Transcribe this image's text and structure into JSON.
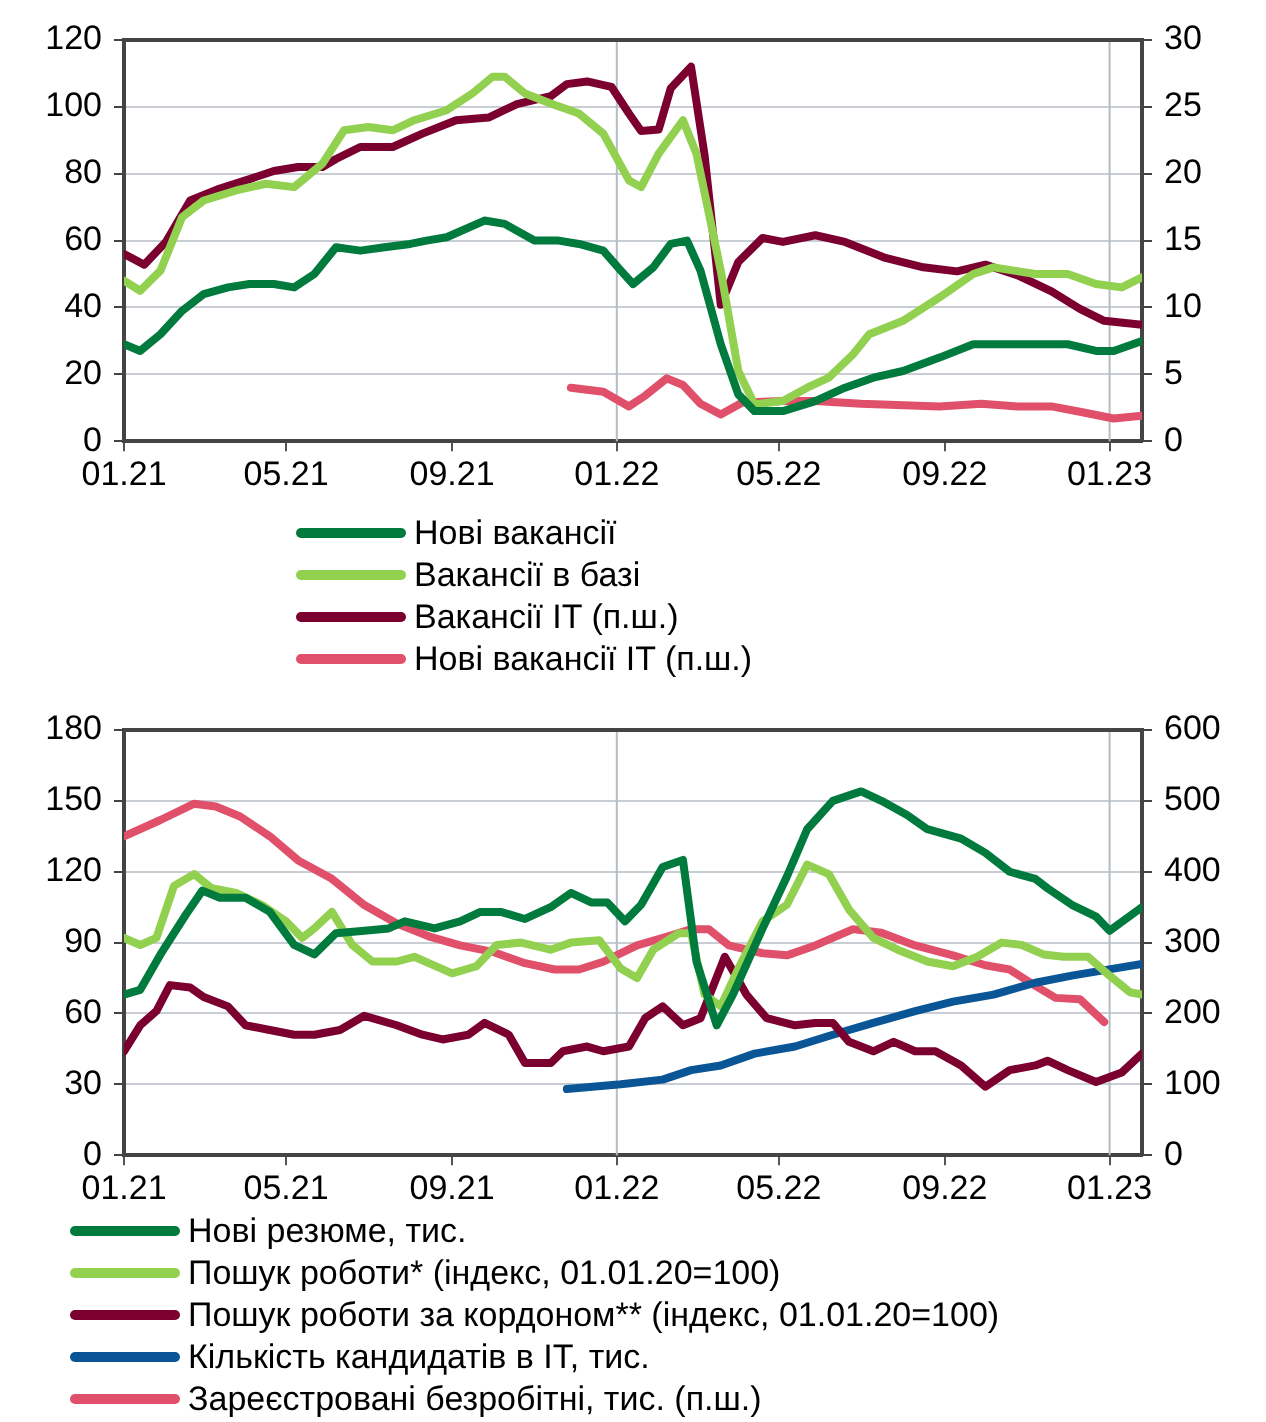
{
  "chart_data": [
    {
      "type": "line",
      "legend": "bottom",
      "grid": "y",
      "marker": "none",
      "line_style": "solid",
      "xlim": [
        "2021-01-01",
        "2023-01-25"
      ],
      "xticks": [
        {
          "value": "2021-01",
          "label": "01.21"
        },
        {
          "value": "2021-05",
          "label": "05.21"
        },
        {
          "value": "2021-09",
          "label": "09.21"
        },
        {
          "value": "2022-01",
          "label": "01.22"
        },
        {
          "value": "2022-05",
          "label": "05.22"
        },
        {
          "value": "2022-09",
          "label": "09.22"
        },
        {
          "value": "2023-01",
          "label": "01.23"
        }
      ],
      "ylim": [
        0,
        120
      ],
      "yticks": [
        0,
        20,
        40,
        60,
        80,
        100,
        120
      ],
      "y2lim": [
        0,
        30
      ],
      "y2ticks": [
        0,
        5,
        10,
        15,
        20,
        25,
        30
      ],
      "ref_lines": [
        {
          "axis": "x",
          "value": "2022-01",
          "color": "#b4bcc4"
        },
        {
          "axis": "x",
          "value": "2023-01",
          "color": "#b4bcc4"
        }
      ],
      "series": [
        {
          "name": "Нові вакансії",
          "color": "#007a3d",
          "x": [
            "2021-01-01",
            "2021-01-13",
            "2021-01-28",
            "2021-02-13",
            "2021-03-01",
            "2021-03-19",
            "2021-04-04",
            "2021-04-22",
            "2021-05-07",
            "2021-05-22",
            "2021-06-07",
            "2021-06-25",
            "2021-07-13",
            "2021-08-01",
            "2021-08-13",
            "2021-08-28",
            "2021-09-25",
            "2021-10-10",
            "2021-11-01",
            "2021-11-19",
            "2021-12-04",
            "2021-12-22",
            "2022-01-04",
            "2022-01-13",
            "2022-01-28",
            "2022-02-10",
            "2022-02-22",
            "2022-03-04",
            "2022-03-19",
            "2022-04-01",
            "2022-04-13",
            "2022-05-04",
            "2022-05-28",
            "2022-06-19",
            "2022-07-10",
            "2022-08-01",
            "2022-08-28",
            "2022-09-22",
            "2022-10-13",
            "2022-11-07",
            "2022-12-01",
            "2022-12-22",
            "2023-01-04",
            "2023-01-25"
          ],
          "values": [
            29,
            27,
            32,
            39,
            44,
            46,
            47,
            47,
            46,
            50,
            58,
            57,
            58,
            59,
            60,
            61,
            66,
            65,
            60,
            60,
            59,
            57,
            51,
            47,
            52,
            59,
            60,
            51,
            29,
            14,
            9,
            9,
            12,
            16,
            19,
            21,
            25,
            29,
            29,
            29,
            29,
            27,
            27,
            30
          ]
        },
        {
          "name": "Вакансії в базі",
          "color": "#92d050",
          "x": [
            "2021-01-01",
            "2021-01-13",
            "2021-01-28",
            "2021-02-13",
            "2021-03-01",
            "2021-03-25",
            "2021-04-16",
            "2021-05-07",
            "2021-05-28",
            "2021-06-13",
            "2021-07-01",
            "2021-07-19",
            "2021-08-04",
            "2021-08-28",
            "2021-09-16",
            "2021-10-01",
            "2021-10-10",
            "2021-10-25",
            "2021-11-13",
            "2021-12-04",
            "2021-12-22",
            "2022-01-10",
            "2022-01-19",
            "2022-02-01",
            "2022-02-19",
            "2022-03-01",
            "2022-03-19",
            "2022-04-01",
            "2022-04-13",
            "2022-05-04",
            "2022-05-22",
            "2022-06-07",
            "2022-06-25",
            "2022-07-07",
            "2022-08-01",
            "2022-08-28",
            "2022-09-22",
            "2022-10-07",
            "2022-11-07",
            "2022-12-01",
            "2022-12-22",
            "2023-01-10",
            "2023-01-25"
          ],
          "values": [
            48,
            45,
            51,
            67,
            72,
            75,
            77,
            76,
            83,
            93,
            94,
            93,
            96,
            99,
            104,
            109,
            109,
            104,
            101,
            98,
            92,
            78,
            76,
            86,
            96,
            86,
            51,
            21,
            11,
            12,
            16,
            19,
            26,
            32,
            36,
            43,
            50,
            52,
            50,
            50,
            47,
            46,
            49
          ]
        },
        {
          "name": "Вакансії IT (п.ш.)",
          "color": "#7b0030",
          "axis": "y2",
          "x": [
            "2021-01-01",
            "2021-01-16",
            "2021-02-01",
            "2021-02-19",
            "2021-03-13",
            "2021-04-04",
            "2021-04-22",
            "2021-05-10",
            "2021-05-28",
            "2021-06-07",
            "2021-06-25",
            "2021-07-19",
            "2021-08-10",
            "2021-09-04",
            "2021-09-28",
            "2021-10-19",
            "2021-11-13",
            "2021-11-25",
            "2021-12-10",
            "2021-12-28",
            "2022-01-10",
            "2022-01-19",
            "2022-02-01",
            "2022-02-10",
            "2022-02-25",
            "2022-03-07",
            "2022-03-19",
            "2022-04-01",
            "2022-04-19",
            "2022-05-04",
            "2022-05-28",
            "2022-06-19",
            "2022-07-19",
            "2022-08-16",
            "2022-09-10",
            "2022-10-01",
            "2022-10-25",
            "2022-11-19",
            "2022-12-10",
            "2022-12-28",
            "2023-01-25"
          ],
          "values": [
            14,
            13.2,
            14.9,
            18,
            18.9,
            19.6,
            20.2,
            20.5,
            20.5,
            21.1,
            22,
            22,
            23,
            24,
            24.2,
            25.2,
            25.8,
            26.7,
            26.9,
            26.5,
            24.5,
            23.2,
            23.3,
            26.4,
            28,
            21.4,
            10.2,
            13.4,
            15.2,
            14.9,
            15.4,
            14.9,
            13.7,
            13,
            12.7,
            13.2,
            12.4,
            11.2,
            9.9,
            9,
            8.7
          ]
        },
        {
          "name": "Нові вакансії IT (п.ш.)",
          "color": "#e0506a",
          "axis": "y2",
          "x": [
            "2021-11-28",
            "2021-12-22",
            "2022-01-10",
            "2022-01-22",
            "2022-02-07",
            "2022-02-19",
            "2022-03-04",
            "2022-03-19",
            "2022-04-04",
            "2022-05-04",
            "2022-05-28",
            "2022-07-01",
            "2022-08-28",
            "2022-09-28",
            "2022-10-25",
            "2022-11-19",
            "2022-12-10",
            "2023-01-04",
            "2023-01-25"
          ],
          "values": [
            4,
            3.7,
            2.6,
            3.4,
            4.7,
            4.2,
            2.8,
            2,
            2.9,
            3,
            3,
            2.8,
            2.6,
            2.8,
            2.6,
            2.6,
            2.2,
            1.7,
            1.9
          ]
        }
      ]
    },
    {
      "type": "line",
      "legend": "bottom",
      "grid": "y",
      "marker": "none",
      "line_style": "solid",
      "xlim": [
        "2021-01-01",
        "2023-01-25"
      ],
      "xticks": [
        {
          "value": "2021-01",
          "label": "01.21"
        },
        {
          "value": "2021-05",
          "label": "05.21"
        },
        {
          "value": "2021-09",
          "label": "09.21"
        },
        {
          "value": "2022-01",
          "label": "01.22"
        },
        {
          "value": "2022-05",
          "label": "05.22"
        },
        {
          "value": "2022-09",
          "label": "09.22"
        },
        {
          "value": "2023-01",
          "label": "01.23"
        }
      ],
      "ylim": [
        0,
        180
      ],
      "yticks": [
        0,
        30,
        60,
        90,
        120,
        150,
        180
      ],
      "y2lim": [
        0,
        600
      ],
      "y2ticks": [
        0,
        100,
        200,
        300,
        400,
        500,
        600
      ],
      "ref_lines": [
        {
          "axis": "x",
          "value": "2022-01",
          "color": "#b4bcc4"
        },
        {
          "axis": "x",
          "value": "2023-01",
          "color": "#b4bcc4"
        }
      ],
      "series": [
        {
          "name": "Нові резюме, тис.",
          "color": "#007a3d",
          "x": [
            "2021-01-01",
            "2021-01-13",
            "2021-01-28",
            "2021-02-16",
            "2021-02-28",
            "2021-03-13",
            "2021-04-01",
            "2021-04-19",
            "2021-05-07",
            "2021-05-22",
            "2021-06-07",
            "2021-06-28",
            "2021-07-16",
            "2021-07-28",
            "2021-08-19",
            "2021-09-07",
            "2021-09-22",
            "2021-10-07",
            "2021-10-25",
            "2021-11-13",
            "2021-11-28",
            "2021-12-13",
            "2021-12-25",
            "2022-01-07",
            "2022-01-19",
            "2022-02-04",
            "2022-02-19",
            "2022-03-01",
            "2022-03-16",
            "2022-03-28",
            "2022-04-19",
            "2022-05-07",
            "2022-05-22",
            "2022-06-10",
            "2022-07-01",
            "2022-07-16",
            "2022-08-04",
            "2022-08-19",
            "2022-09-13",
            "2022-10-01",
            "2022-10-19",
            "2022-11-07",
            "2022-11-16",
            "2022-12-04",
            "2022-12-22",
            "2023-01-01",
            "2023-01-25"
          ],
          "values": [
            68,
            70,
            85,
            102,
            112,
            109,
            109,
            103,
            89,
            85,
            94,
            95,
            96,
            99,
            96,
            99,
            103,
            103,
            100,
            105,
            111,
            107,
            107,
            99,
            106,
            122,
            125,
            82,
            55,
            68,
            96,
            118,
            138,
            150,
            154,
            150,
            144,
            138,
            134,
            128,
            120,
            117,
            113,
            106,
            101,
            95,
            105
          ]
        },
        {
          "name": "Пошук роботи* (індекс, 01.01.20=100)",
          "color": "#92d050",
          "x": [
            "2021-01-01",
            "2021-01-13",
            "2021-01-25",
            "2021-02-07",
            "2021-02-22",
            "2021-03-07",
            "2021-03-25",
            "2021-04-13",
            "2021-05-01",
            "2021-05-13",
            "2021-05-22",
            "2021-06-04",
            "2021-06-19",
            "2021-07-04",
            "2021-07-22",
            "2021-08-04",
            "2021-08-16",
            "2021-09-01",
            "2021-09-19",
            "2021-10-04",
            "2021-10-22",
            "2021-11-13",
            "2021-11-28",
            "2021-12-19",
            "2022-01-04",
            "2022-01-16",
            "2022-01-28",
            "2022-02-16",
            "2022-02-25",
            "2022-03-07",
            "2022-03-19",
            "2022-04-01",
            "2022-04-19",
            "2022-05-07",
            "2022-05-22",
            "2022-06-07",
            "2022-06-22",
            "2022-07-10",
            "2022-07-28",
            "2022-08-19",
            "2022-09-07",
            "2022-09-25",
            "2022-10-13",
            "2022-10-28",
            "2022-11-13",
            "2022-11-28",
            "2022-12-16",
            "2023-01-01",
            "2023-01-16",
            "2023-01-25"
          ],
          "values": [
            92,
            89,
            92,
            114,
            119,
            113,
            111,
            106,
            99,
            92,
            96,
            103,
            89,
            82,
            82,
            84,
            81,
            77,
            80,
            89,
            90,
            87,
            90,
            91,
            79,
            75,
            87,
            94,
            94,
            68,
            63,
            79,
            99,
            106,
            123,
            119,
            104,
            92,
            87,
            82,
            80,
            84,
            90,
            89,
            85,
            84,
            84,
            76,
            69,
            68
          ]
        },
        {
          "name": "Пошук роботи за кордоном** (індекс, 01.01.20=100)",
          "color": "#7b0030",
          "x": [
            "2021-01-01",
            "2021-01-13",
            "2021-01-25",
            "2021-02-04",
            "2021-02-19",
            "2021-03-01",
            "2021-03-19",
            "2021-04-01",
            "2021-04-19",
            "2021-05-07",
            "2021-05-22",
            "2021-06-10",
            "2021-06-28",
            "2021-07-22",
            "2021-08-10",
            "2021-08-25",
            "2021-09-13",
            "2021-09-25",
            "2021-10-13",
            "2021-10-25",
            "2021-11-13",
            "2021-11-22",
            "2021-12-10",
            "2021-12-22",
            "2022-01-10",
            "2022-01-22",
            "2022-02-04",
            "2022-02-19",
            "2022-03-04",
            "2022-03-22",
            "2022-04-07",
            "2022-04-22",
            "2022-05-13",
            "2022-05-28",
            "2022-06-10",
            "2022-06-22",
            "2022-07-10",
            "2022-07-25",
            "2022-08-10",
            "2022-08-25",
            "2022-09-13",
            "2022-10-01",
            "2022-10-19",
            "2022-11-07",
            "2022-11-16",
            "2022-12-01",
            "2022-12-22",
            "2023-01-10",
            "2023-01-25"
          ],
          "values": [
            44,
            55,
            61,
            72,
            71,
            67,
            63,
            55,
            53,
            51,
            51,
            53,
            59,
            55,
            51,
            49,
            51,
            56,
            51,
            39,
            39,
            44,
            46,
            44,
            46,
            58,
            63,
            55,
            58,
            84,
            68,
            58,
            55,
            56,
            56,
            48,
            44,
            48,
            44,
            44,
            38,
            29,
            36,
            38,
            40,
            36,
            31,
            35,
            43
          ]
        },
        {
          "name": "Кількість кандидатів в IT, тис.",
          "color": "#0a5596",
          "x": [
            "2021-11-25",
            "2022-01-04",
            "2022-02-04",
            "2022-02-25",
            "2022-03-19",
            "2022-04-13",
            "2022-05-13",
            "2022-06-10",
            "2022-07-10",
            "2022-08-10",
            "2022-09-07",
            "2022-10-07",
            "2022-11-07",
            "2022-12-04",
            "2023-01-04",
            "2023-01-25"
          ],
          "values": [
            28,
            30,
            32,
            36,
            38,
            43,
            46,
            51,
            56,
            61,
            65,
            68,
            73,
            76,
            79,
            81
          ]
        },
        {
          "name": "Зареєстровані безробітні, тис. (п.ш.)",
          "color": "#e0506a",
          "axis": "y2",
          "x": [
            "2021-01-01",
            "2021-01-28",
            "2021-02-22",
            "2021-03-10",
            "2021-03-28",
            "2021-04-19",
            "2021-05-10",
            "2021-06-04",
            "2021-06-28",
            "2021-07-22",
            "2021-08-16",
            "2021-09-07",
            "2021-10-01",
            "2021-10-25",
            "2021-11-16",
            "2021-12-04",
            "2021-12-22",
            "2022-01-16",
            "2022-02-10",
            "2022-02-25",
            "2022-03-10",
            "2022-03-25",
            "2022-04-19",
            "2022-05-07",
            "2022-05-28",
            "2022-06-25",
            "2022-07-16",
            "2022-08-10",
            "2022-09-07",
            "2022-10-01",
            "2022-10-19",
            "2022-11-07",
            "2022-11-22",
            "2022-12-10",
            "2022-12-28"
          ],
          "values": [
            450,
            473,
            496,
            492,
            478,
            450,
            416,
            390,
            353,
            327,
            308,
            296,
            287,
            271,
            262,
            262,
            273,
            296,
            310,
            319,
            319,
            296,
            285,
            282,
            296,
            319,
            314,
            296,
            282,
            268,
            262,
            239,
            222,
            220,
            188
          ]
        }
      ]
    }
  ]
}
